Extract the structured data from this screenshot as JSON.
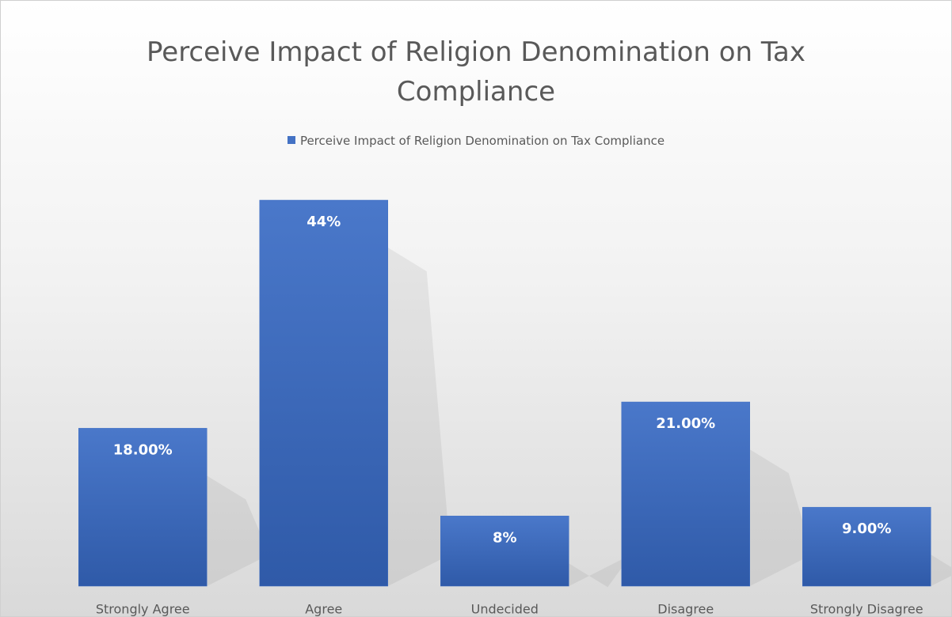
{
  "chart_data": {
    "type": "bar",
    "title": "Perceive Impact of Religion Denomination on Tax Compliance",
    "categories": [
      "Strongly Agree",
      "Agree",
      "Undecided",
      "Disagree",
      "Strongly Disagree"
    ],
    "series": [
      {
        "name": "Perceive Impact of Religion Denomination on Tax Compliance",
        "color": "#4472c4",
        "values": [
          18,
          44,
          8,
          21,
          9
        ],
        "value_labels": [
          "18.00%",
          "44%",
          "8%",
          "21.00%",
          "9.00%"
        ]
      }
    ]
  }
}
